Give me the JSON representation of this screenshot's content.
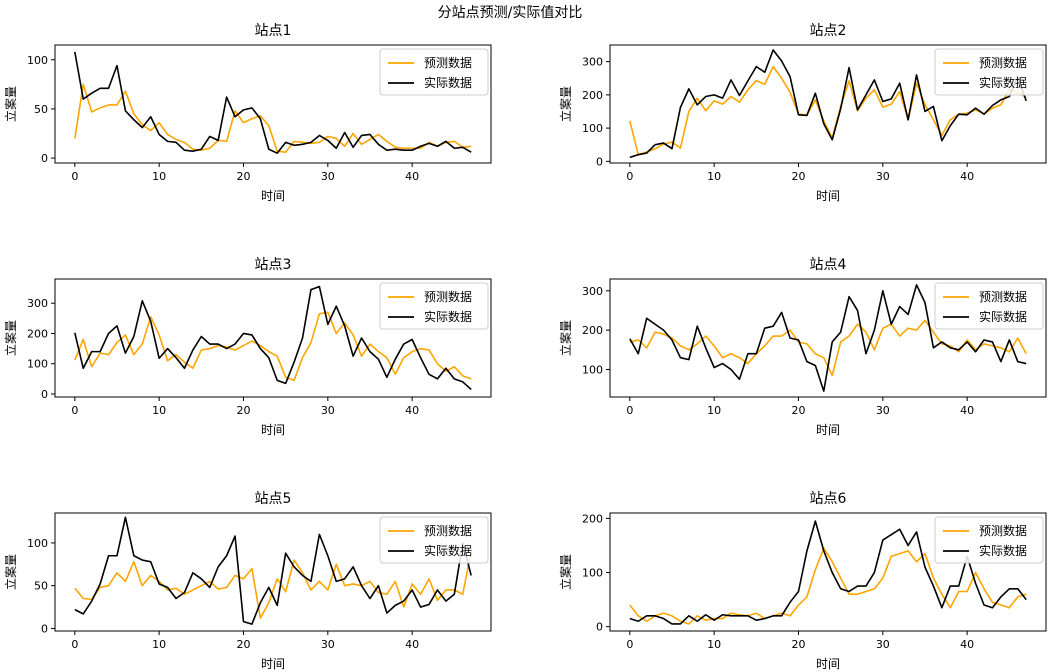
{
  "figure": {
    "title": "分站点预测/实际值对比"
  },
  "colors": {
    "predicted": "#FFA500",
    "actual": "#000000"
  },
  "legend_labels": {
    "predicted": "预测数据",
    "actual": "实际数据"
  },
  "chart_data": [
    {
      "type": "line",
      "title": "站点1",
      "xlabel": "时间",
      "ylabel": "立案量",
      "xlim": [
        -2.35,
        49.35
      ],
      "ylim": [
        -5,
        115
      ],
      "xticks": [
        0,
        10,
        20,
        30,
        40
      ],
      "yticks": [
        0,
        50,
        100
      ],
      "legend_position": "top-right",
      "series": [
        {
          "name": "预测数据",
          "color": "#FFA500",
          "values": [
            20,
            75,
            47,
            51,
            54,
            54,
            68,
            45,
            34,
            28,
            36,
            24,
            19,
            16,
            9,
            8,
            10,
            18,
            17,
            48,
            36,
            40,
            43,
            33,
            7,
            6,
            17,
            16,
            15,
            16,
            22,
            20,
            12,
            25,
            14,
            19,
            24,
            17,
            11,
            10,
            10,
            10,
            16,
            12,
            16,
            17,
            11,
            12
          ]
        },
        {
          "name": "实际数据",
          "color": "#000000",
          "values": [
            108,
            60,
            66,
            71,
            71,
            94,
            48,
            39,
            31,
            42,
            24,
            17,
            16,
            8,
            7,
            9,
            22,
            18,
            62,
            42,
            49,
            51,
            40,
            9,
            5,
            16,
            13,
            14,
            16,
            23,
            18,
            10,
            26,
            11,
            23,
            24,
            14,
            8,
            9,
            8,
            8,
            12,
            15,
            12,
            17,
            10,
            11,
            6
          ]
        }
      ]
    },
    {
      "type": "line",
      "title": "站点2",
      "xlabel": "时间",
      "ylabel": "立案量",
      "xlim": [
        -2.35,
        49.35
      ],
      "ylim": [
        -5,
        350
      ],
      "xticks": [
        0,
        10,
        20,
        30,
        40
      ],
      "yticks": [
        0,
        100,
        200,
        300
      ],
      "legend_position": "top-right",
      "series": [
        {
          "name": "预测数据",
          "color": "#FFA500",
          "values": [
            122,
            20,
            28,
            38,
            52,
            58,
            40,
            150,
            190,
            152,
            182,
            172,
            195,
            178,
            215,
            243,
            232,
            285,
            250,
            208,
            142,
            140,
            185,
            122,
            70,
            165,
            242,
            152,
            190,
            215,
            163,
            172,
            210,
            125,
            235,
            170,
            125,
            78,
            125,
            142,
            145,
            155,
            142,
            160,
            170,
            215,
            210,
            192
          ]
        },
        {
          "name": "实际数据",
          "color": "#000000",
          "values": [
            12,
            20,
            25,
            50,
            55,
            38,
            162,
            218,
            170,
            195,
            200,
            190,
            245,
            198,
            242,
            285,
            268,
            335,
            302,
            255,
            140,
            138,
            205,
            113,
            65,
            158,
            282,
            155,
            200,
            245,
            180,
            188,
            235,
            125,
            260,
            150,
            165,
            62,
            107,
            142,
            140,
            160,
            142,
            168,
            185,
            195,
            255,
            182
          ]
        }
      ]
    },
    {
      "type": "line",
      "title": "站点3",
      "xlabel": "时间",
      "ylabel": "立案量",
      "xlim": [
        -2.35,
        49.35
      ],
      "ylim": [
        -10,
        380
      ],
      "xticks": [
        0,
        10,
        20,
        30,
        40
      ],
      "yticks": [
        0,
        100,
        200,
        300
      ],
      "legend_position": "top-right",
      "series": [
        {
          "name": "预测数据",
          "color": "#FFA500",
          "values": [
            112,
            180,
            90,
            135,
            130,
            170,
            195,
            130,
            165,
            255,
            195,
            110,
            130,
            105,
            85,
            145,
            150,
            160,
            155,
            145,
            160,
            175,
            160,
            140,
            125,
            55,
            45,
            120,
            170,
            265,
            270,
            200,
            235,
            195,
            125,
            165,
            140,
            120,
            65,
            120,
            140,
            150,
            145,
            100,
            75,
            90,
            60,
            50
          ]
        },
        {
          "name": "实际数据",
          "color": "#000000",
          "values": [
            202,
            85,
            140,
            140,
            200,
            225,
            135,
            190,
            308,
            240,
            118,
            150,
            120,
            85,
            145,
            190,
            165,
            165,
            150,
            165,
            200,
            195,
            150,
            120,
            45,
            35,
            105,
            185,
            345,
            355,
            230,
            290,
            225,
            125,
            185,
            140,
            115,
            55,
            115,
            165,
            180,
            120,
            65,
            50,
            85,
            50,
            40,
            15
          ]
        }
      ]
    },
    {
      "type": "line",
      "title": "站点4",
      "xlabel": "时间",
      "ylabel": "立案量",
      "xlim": [
        -2.35,
        49.35
      ],
      "ylim": [
        30,
        330
      ],
      "xticks": [
        0,
        10,
        20,
        30,
        40
      ],
      "yticks": [
        100,
        200,
        300
      ],
      "legend_position": "top-right",
      "series": [
        {
          "name": "预测数据",
          "color": "#FFA500",
          "values": [
            170,
            175,
            155,
            195,
            190,
            180,
            160,
            150,
            165,
            185,
            160,
            130,
            140,
            130,
            115,
            140,
            160,
            185,
            185,
            200,
            170,
            165,
            140,
            130,
            85,
            170,
            185,
            215,
            195,
            150,
            205,
            215,
            185,
            205,
            200,
            225,
            195,
            165,
            160,
            145,
            175,
            150,
            165,
            160,
            155,
            145,
            180,
            140
          ]
        },
        {
          "name": "实际数据",
          "color": "#000000",
          "values": [
            178,
            140,
            230,
            215,
            200,
            175,
            130,
            125,
            210,
            155,
            105,
            115,
            100,
            75,
            140,
            140,
            205,
            210,
            245,
            180,
            175,
            120,
            110,
            45,
            170,
            195,
            285,
            250,
            140,
            200,
            300,
            215,
            260,
            240,
            315,
            270,
            155,
            170,
            155,
            150,
            170,
            145,
            175,
            170,
            120,
            175,
            120,
            115
          ]
        }
      ]
    },
    {
      "type": "line",
      "title": "站点5",
      "xlabel": "时间",
      "ylabel": "立案量",
      "xlim": [
        -2.35,
        49.35
      ],
      "ylim": [
        -3,
        135
      ],
      "xticks": [
        0,
        10,
        20,
        30,
        40
      ],
      "yticks": [
        0,
        50,
        100
      ],
      "legend_position": "top-right",
      "series": [
        {
          "name": "预测数据",
          "color": "#FFA500",
          "values": [
            47,
            35,
            34,
            48,
            50,
            65,
            55,
            78,
            50,
            62,
            55,
            45,
            47,
            40,
            45,
            50,
            55,
            46,
            48,
            62,
            58,
            70,
            12,
            30,
            58,
            43,
            80,
            65,
            45,
            55,
            45,
            75,
            50,
            52,
            50,
            55,
            42,
            40,
            55,
            25,
            52,
            40,
            58,
            33,
            45,
            45,
            40,
            90
          ]
        },
        {
          "name": "实际数据",
          "color": "#000000",
          "values": [
            22,
            17,
            32,
            52,
            85,
            85,
            130,
            85,
            80,
            78,
            52,
            48,
            35,
            42,
            65,
            58,
            48,
            72,
            85,
            108,
            8,
            5,
            30,
            48,
            27,
            88,
            72,
            62,
            55,
            110,
            85,
            55,
            58,
            72,
            50,
            35,
            50,
            18,
            27,
            32,
            45,
            25,
            28,
            45,
            32,
            40,
            100,
            62
          ]
        }
      ]
    },
    {
      "type": "line",
      "title": "站点6",
      "xlabel": "时间",
      "ylabel": "立案量",
      "xlim": [
        -2.35,
        49.35
      ],
      "ylim": [
        -8,
        210
      ],
      "xticks": [
        0,
        10,
        20,
        30,
        40
      ],
      "yticks": [
        0,
        100,
        200
      ],
      "legend_position": "top-right",
      "series": [
        {
          "name": "预测数据",
          "color": "#FFA500",
          "values": [
            40,
            20,
            10,
            20,
            25,
            20,
            10,
            5,
            20,
            12,
            15,
            15,
            25,
            22,
            20,
            25,
            15,
            20,
            25,
            20,
            40,
            55,
            105,
            145,
            120,
            90,
            60,
            60,
            65,
            70,
            90,
            130,
            135,
            140,
            120,
            135,
            90,
            60,
            35,
            65,
            65,
            100,
            70,
            45,
            40,
            35,
            55,
            60
          ]
        },
        {
          "name": "实际数据",
          "color": "#000000",
          "values": [
            15,
            10,
            20,
            20,
            15,
            5,
            5,
            20,
            10,
            22,
            12,
            22,
            20,
            20,
            20,
            12,
            15,
            20,
            20,
            45,
            65,
            140,
            195,
            140,
            100,
            70,
            65,
            75,
            75,
            100,
            160,
            170,
            180,
            150,
            175,
            110,
            75,
            35,
            75,
            75,
            130,
            80,
            40,
            35,
            55,
            70,
            70,
            50
          ]
        }
      ]
    }
  ]
}
